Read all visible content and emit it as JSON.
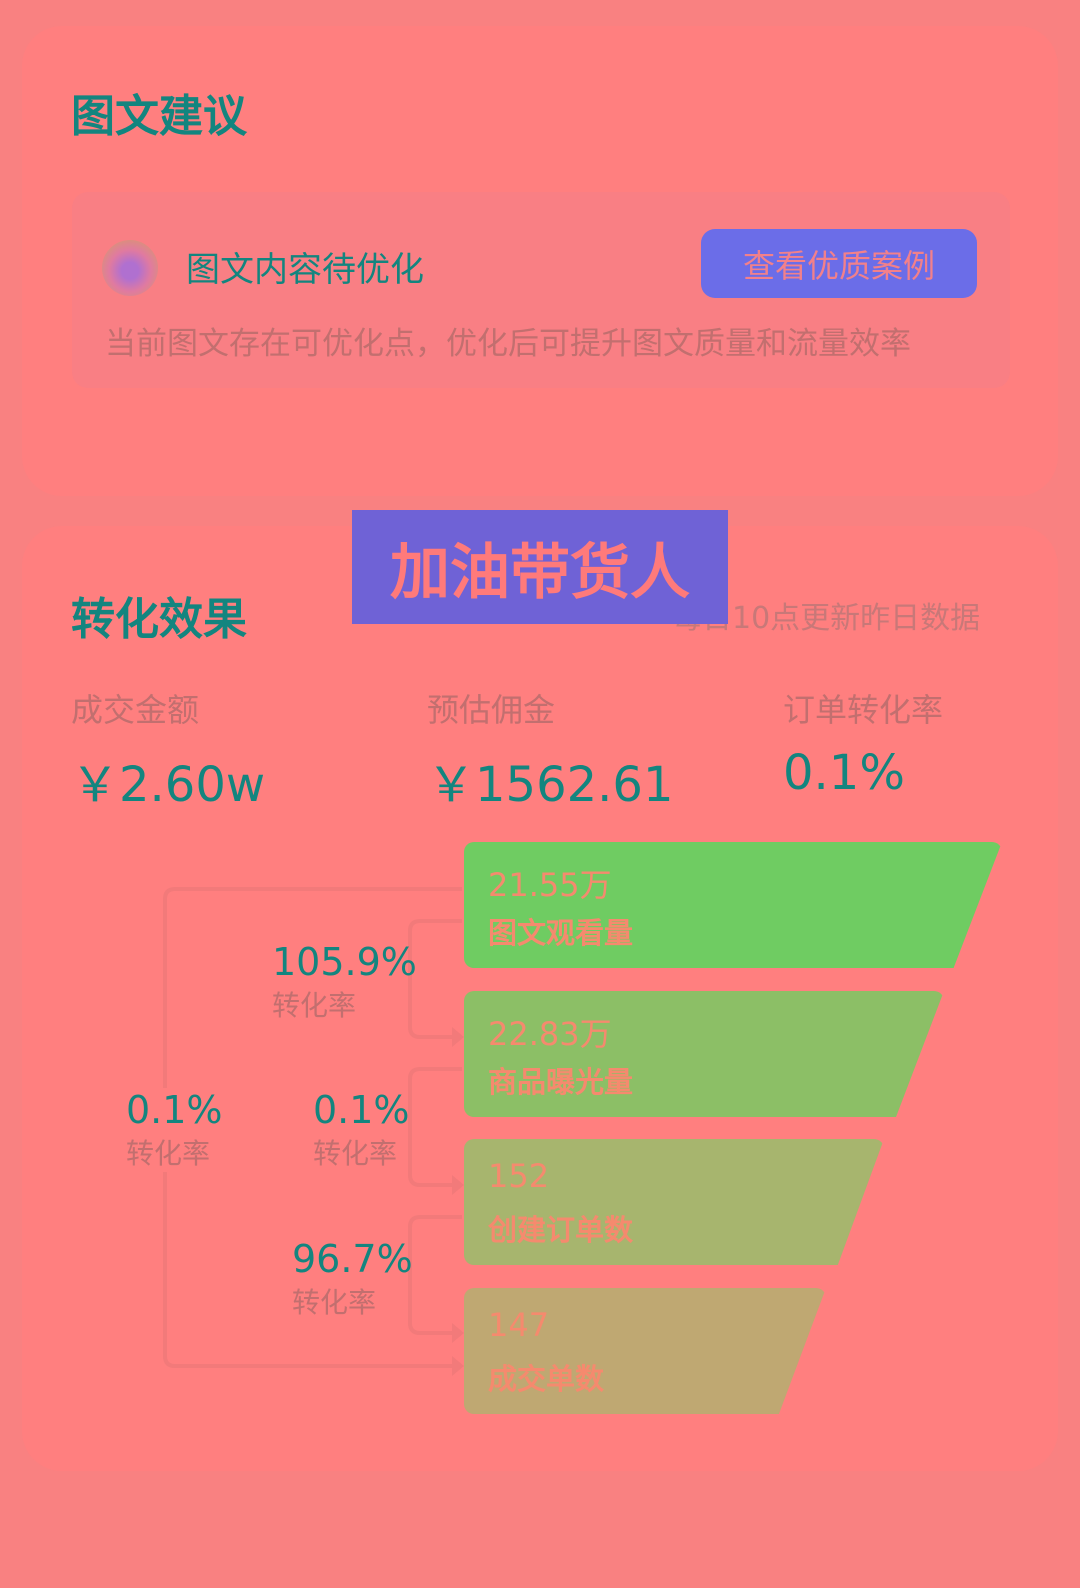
{
  "suggestion": {
    "title": "图文建议",
    "tip_title": "图文内容待优化",
    "button": "查看优质案例",
    "description": "当前图文存在可优化点，优化后可提升图文质量和流量效率"
  },
  "overlay_banner": "加油带货人",
  "conversion": {
    "title": "转化效果",
    "update_note": "每日10点更新昨日数据",
    "metrics": [
      {
        "label": "成交金额",
        "value": "￥2.60w"
      },
      {
        "label": "预估佣金",
        "value": "￥1562.61"
      },
      {
        "label": "订单转化率",
        "value": "0.1%"
      }
    ],
    "funnel": [
      {
        "value": "21.55万",
        "label": "图文观看量",
        "color": "#6fcc62"
      },
      {
        "value": "22.83万",
        "label": "商品曝光量",
        "color": "#8cbf66"
      },
      {
        "value": "152",
        "label": "创建订单数",
        "color": "#a7b56e"
      },
      {
        "value": "147",
        "label": "成交单数",
        "color": "#bfa872"
      }
    ],
    "rates": [
      {
        "value": "105.9%",
        "label": "转化率"
      },
      {
        "value": "0.1%",
        "label": "转化率"
      },
      {
        "value": "96.7%",
        "label": "转化率"
      },
      {
        "value": "0.1%",
        "label": "转化率"
      }
    ]
  }
}
